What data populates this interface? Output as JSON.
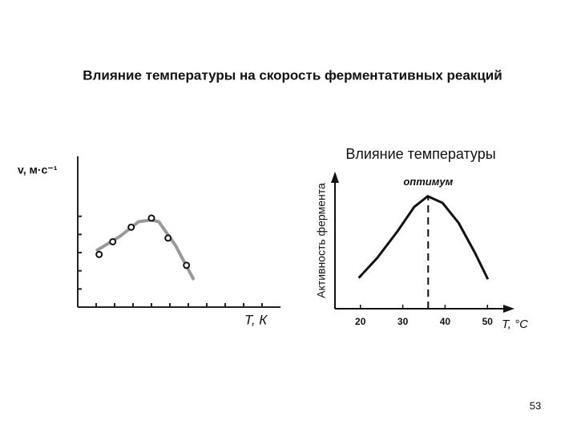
{
  "title": "Влияние температуры на скорость ферментативных реакций",
  "page_number": "53",
  "chart_data": [
    {
      "type": "scatter",
      "ylabel": "v, м·с⁻¹",
      "xlabel": "T, К",
      "x": [
        1.16,
        1.9,
        2.9,
        4.0,
        4.9,
        5.9
      ],
      "values": [
        2.9,
        3.6,
        4.4,
        4.9,
        3.8,
        2.3
      ],
      "color": "#111111",
      "curve": {
        "x": [
          1.0,
          2.3,
          3.3,
          4.0,
          4.4,
          5.3,
          6.3
        ],
        "values": [
          3.1,
          3.9,
          4.7,
          4.8,
          4.7,
          3.4,
          1.5
        ],
        "color": "#999999"
      },
      "xlim": [
        0,
        11
      ],
      "ylim": [
        0,
        8.3
      ],
      "xticks": [
        1,
        2,
        3,
        4,
        5,
        6,
        7,
        8,
        9,
        10
      ],
      "yticks": [
        1,
        2,
        3,
        4,
        5
      ]
    },
    {
      "type": "line",
      "title": "Влияние температуры",
      "ylabel": "Активность фермента",
      "xlabel": "T, °C",
      "x": [
        19.6,
        24.0,
        28.8,
        32.7,
        35.9,
        39.4,
        43.2,
        47.0,
        50.1
      ],
      "values": [
        23,
        38,
        58,
        76,
        84,
        79,
        64,
        42,
        22
      ],
      "color": "#111111",
      "annotation": {
        "text": "оптимум",
        "x": 36
      },
      "xlim": [
        14,
        56
      ],
      "ylim": [
        0,
        100
      ],
      "xticks": [
        20,
        30,
        40,
        50
      ]
    }
  ]
}
